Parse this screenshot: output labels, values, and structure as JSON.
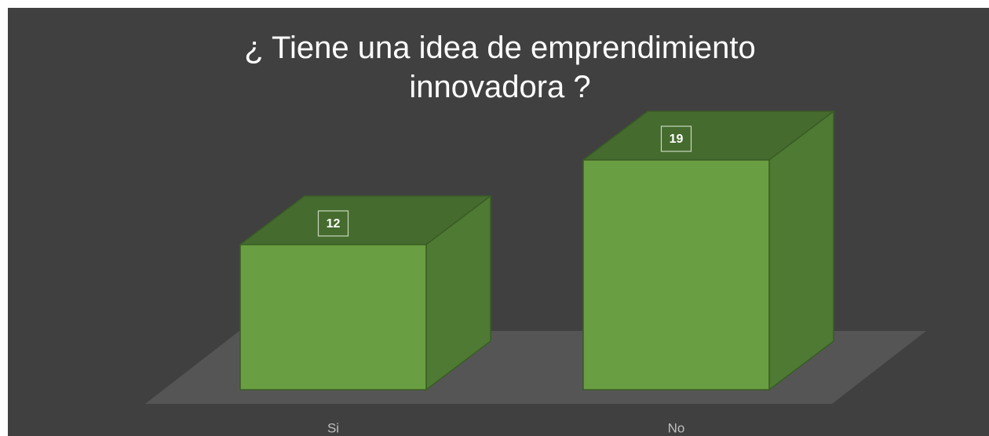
{
  "chart_data": {
    "type": "bar3d",
    "title": [
      "¿ Tiene una idea de emprendimiento",
      "innovadora ?"
    ],
    "categories": [
      "Si",
      "No"
    ],
    "values": [
      12,
      19
    ],
    "color": "#6a9e42"
  }
}
